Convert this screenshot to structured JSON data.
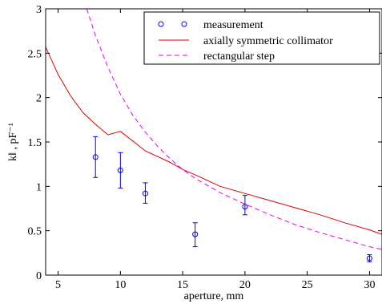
{
  "chart_data": {
    "type": "scatter",
    "xlabel": "aperture, mm",
    "ylabel": "k‖ , pF⁻¹",
    "xlim": [
      4,
      31
    ],
    "ylim": [
      0,
      3
    ],
    "grid": false,
    "legend_position": "top-right",
    "x_ticks": [
      5,
      10,
      15,
      20,
      25,
      30
    ],
    "y_ticks": [
      0,
      0.5,
      1,
      1.5,
      2,
      2.5,
      3
    ],
    "x_tick_labels": [
      "5",
      "10",
      "15",
      "20",
      "25",
      "30"
    ],
    "y_tick_labels": [
      "0",
      "0.5",
      "1",
      "1.5",
      "2",
      "2.5",
      "3"
    ],
    "series": [
      {
        "name": "measurement",
        "kind": "errorbar",
        "color": "#0000ff",
        "marker": "circle",
        "points": [
          {
            "x": 8,
            "y": 1.33,
            "lo": 1.1,
            "hi": 1.56
          },
          {
            "x": 10,
            "y": 1.18,
            "lo": 0.98,
            "hi": 1.38
          },
          {
            "x": 12,
            "y": 0.92,
            "lo": 0.81,
            "hi": 1.04
          },
          {
            "x": 16,
            "y": 0.46,
            "lo": 0.32,
            "hi": 0.59
          },
          {
            "x": 20,
            "y": 0.77,
            "lo": 0.68,
            "hi": 0.9
          },
          {
            "x": 30,
            "y": 0.19,
            "lo": 0.15,
            "hi": 0.23
          }
        ]
      },
      {
        "name": "axially symmetric collimator",
        "kind": "line",
        "color": "#dd0000",
        "dash": "solid",
        "points": [
          {
            "x": 4,
            "y": 2.57
          },
          {
            "x": 5,
            "y": 2.26
          },
          {
            "x": 6,
            "y": 2.02
          },
          {
            "x": 7,
            "y": 1.83
          },
          {
            "x": 8,
            "y": 1.7
          },
          {
            "x": 9,
            "y": 1.58
          },
          {
            "x": 10,
            "y": 1.62
          },
          {
            "x": 12,
            "y": 1.4
          },
          {
            "x": 14,
            "y": 1.27
          },
          {
            "x": 15,
            "y": 1.19
          },
          {
            "x": 16,
            "y": 1.13
          },
          {
            "x": 18,
            "y": 1.0
          },
          {
            "x": 20,
            "y": 0.92
          },
          {
            "x": 22,
            "y": 0.84
          },
          {
            "x": 24,
            "y": 0.76
          },
          {
            "x": 25,
            "y": 0.72
          },
          {
            "x": 26,
            "y": 0.68
          },
          {
            "x": 28,
            "y": 0.59
          },
          {
            "x": 30,
            "y": 0.51
          },
          {
            "x": 31,
            "y": 0.46
          }
        ]
      },
      {
        "name": "rectangular step",
        "kind": "line",
        "color": "#ee00ee",
        "dash": "dashed",
        "points": [
          {
            "x": 7.3,
            "y": 3.0
          },
          {
            "x": 8,
            "y": 2.7
          },
          {
            "x": 9,
            "y": 2.34
          },
          {
            "x": 10,
            "y": 2.04
          },
          {
            "x": 11,
            "y": 1.8
          },
          {
            "x": 12,
            "y": 1.61
          },
          {
            "x": 13,
            "y": 1.45
          },
          {
            "x": 14,
            "y": 1.31
          },
          {
            "x": 15,
            "y": 1.19
          },
          {
            "x": 16,
            "y": 1.09
          },
          {
            "x": 18,
            "y": 0.93
          },
          {
            "x": 20,
            "y": 0.8
          },
          {
            "x": 22,
            "y": 0.68
          },
          {
            "x": 24,
            "y": 0.57
          },
          {
            "x": 26,
            "y": 0.48
          },
          {
            "x": 28,
            "y": 0.4
          },
          {
            "x": 30,
            "y": 0.32
          },
          {
            "x": 31,
            "y": 0.29
          }
        ]
      }
    ],
    "legend": {
      "entries": [
        "measurement",
        "axially symmetric collimator",
        "rectangular step"
      ]
    }
  }
}
